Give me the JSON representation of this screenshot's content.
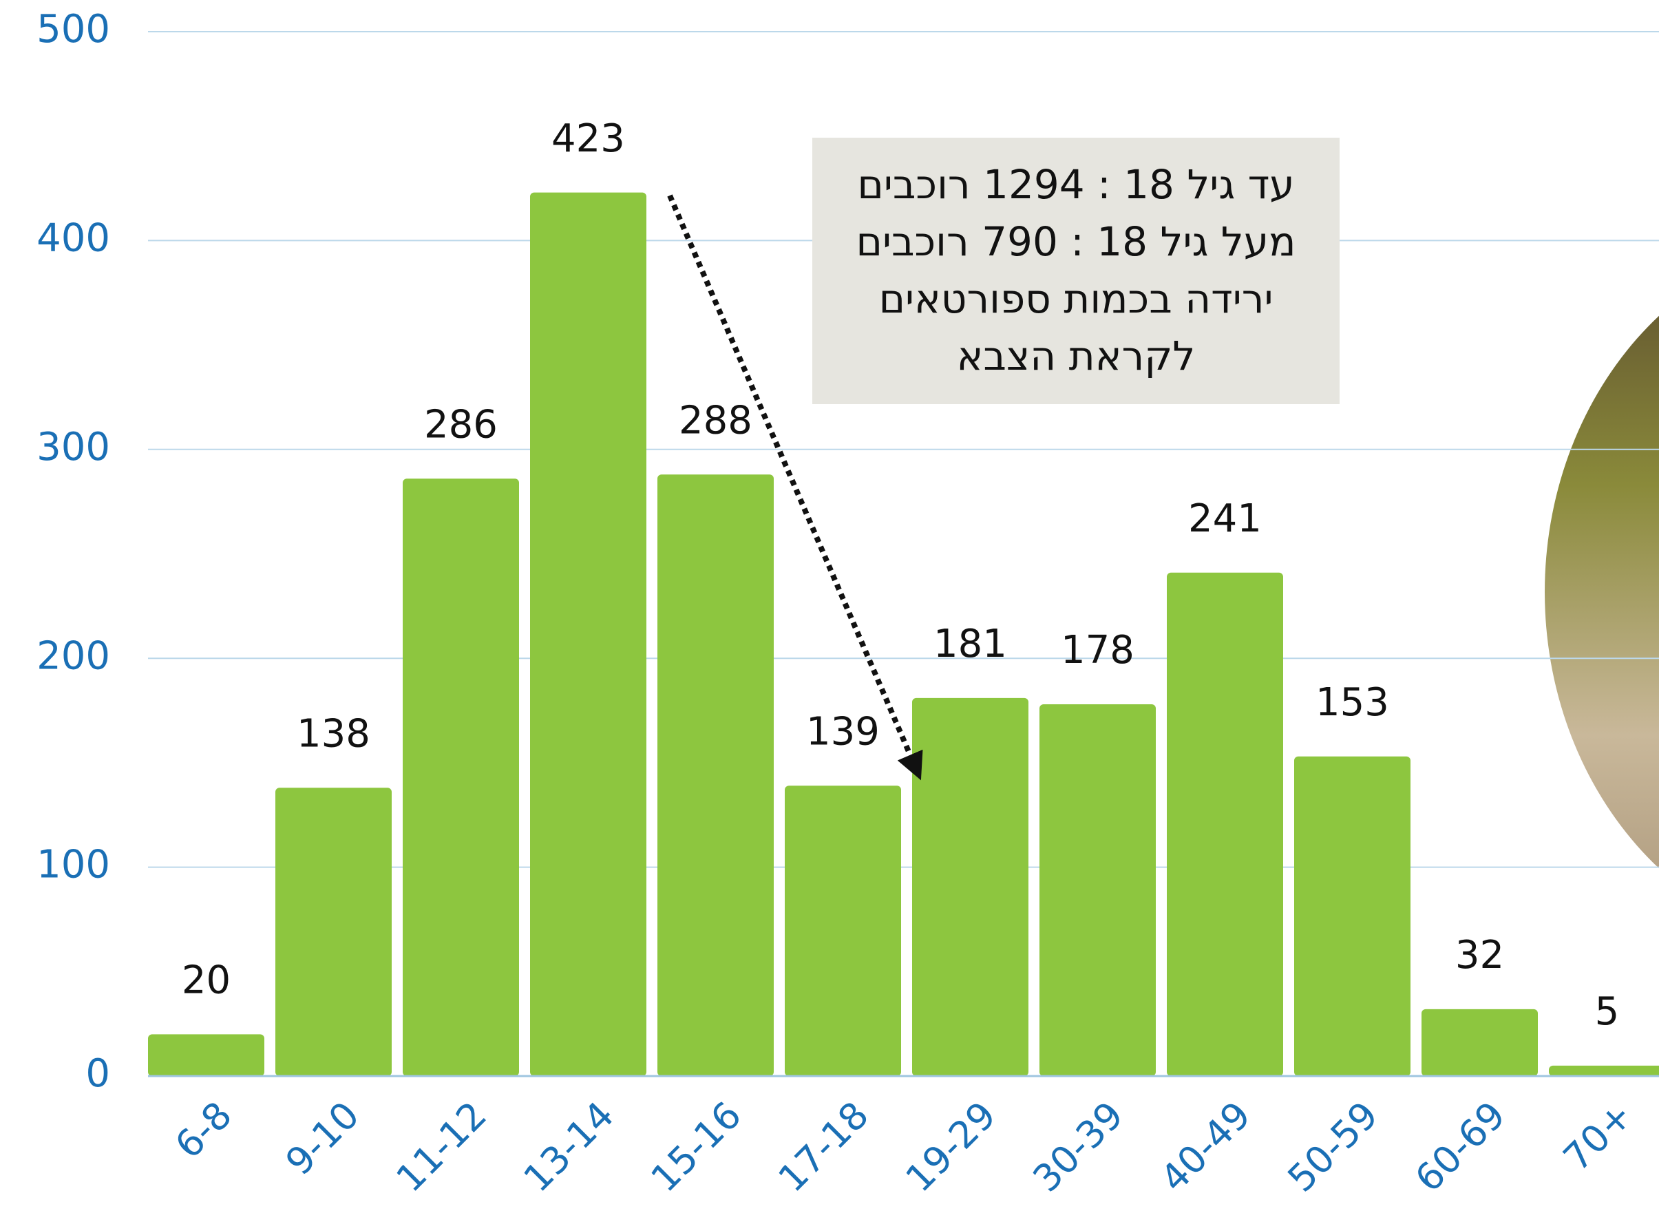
{
  "chart_data": {
    "type": "bar",
    "categories": [
      "6-8",
      "9-10",
      "11-12",
      "13-14",
      "15-16",
      "17-18",
      "19-29",
      "30-39",
      "40-49",
      "50-59",
      "60-69",
      "70+"
    ],
    "values": [
      20,
      138,
      286,
      423,
      288,
      139,
      181,
      178,
      241,
      153,
      32,
      5
    ],
    "color": "#8dc63f",
    "ylim": [
      0,
      500
    ],
    "yticks": [
      0,
      100,
      200,
      300,
      400,
      500
    ],
    "grid": true,
    "annotation": [
      "עד גיל 18 : 1294 רוכבים",
      "מעל גיל 18 : 790 רוכבים",
      "ירידה בכמות ספורטאים",
      "לקראת הצבא"
    ]
  }
}
